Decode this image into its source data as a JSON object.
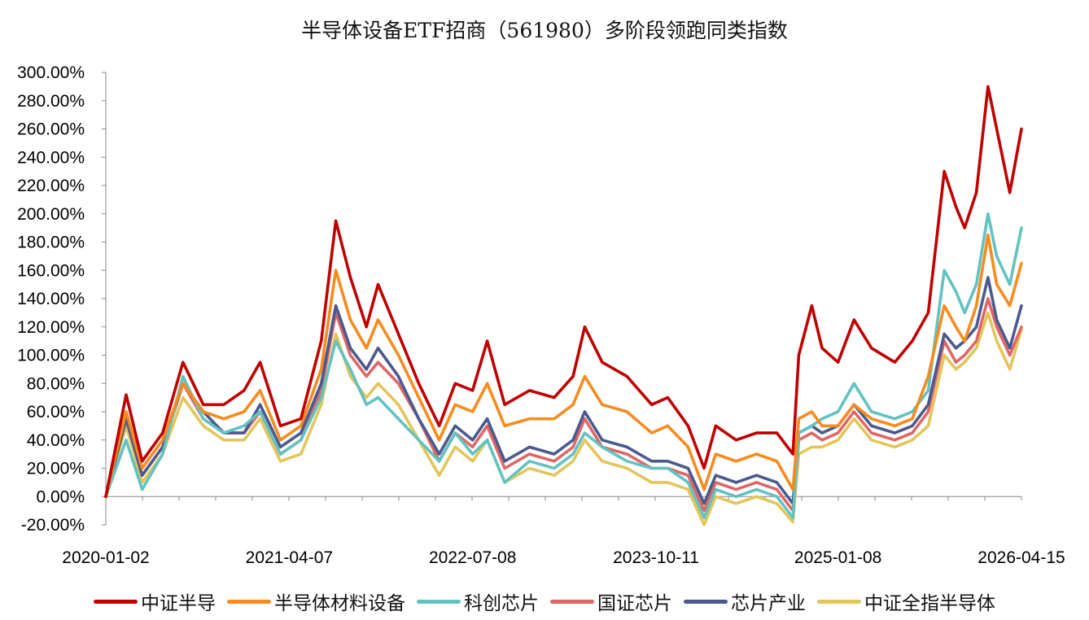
{
  "chart_data": {
    "type": "line",
    "title": "半导体设备ETF招商（561980）多阶段领跑同类指数",
    "xlabel": "",
    "ylabel": "",
    "ylim": [
      -20,
      300
    ],
    "xlim": [
      2020.0,
      2026.29
    ],
    "yticks": [
      -20,
      0,
      20,
      40,
      60,
      80,
      100,
      120,
      140,
      160,
      180,
      200,
      220,
      240,
      260,
      280,
      300
    ],
    "ytick_labels": [
      "-20.00%",
      "0.00%",
      "20.00%",
      "40.00%",
      "60.00%",
      "80.00%",
      "100.00%",
      "120.00%",
      "140.00%",
      "160.00%",
      "180.00%",
      "200.00%",
      "220.00%",
      "240.00%",
      "260.00%",
      "280.00%",
      "300.00%"
    ],
    "xticks": [
      2020.0,
      2021.26,
      2022.52,
      2023.78,
      2025.03,
      2026.29
    ],
    "xtick_labels": [
      "2020-01-02",
      "2021-04-07",
      "2022-07-08",
      "2023-10-11",
      "2025-01-08",
      "2026-04-15"
    ],
    "grid": false,
    "legend_position": "bottom",
    "x": [
      2020.0,
      2020.14,
      2020.25,
      2020.39,
      2020.53,
      2020.67,
      2020.81,
      2020.95,
      2021.06,
      2021.2,
      2021.34,
      2021.48,
      2021.58,
      2021.68,
      2021.79,
      2021.87,
      2022.01,
      2022.15,
      2022.29,
      2022.4,
      2022.52,
      2022.62,
      2022.74,
      2022.91,
      2023.08,
      2023.21,
      2023.29,
      2023.41,
      2023.58,
      2023.75,
      2023.86,
      2024.0,
      2024.11,
      2024.19,
      2024.33,
      2024.47,
      2024.61,
      2024.72,
      2024.76,
      2024.85,
      2024.92,
      2025.03,
      2025.14,
      2025.26,
      2025.42,
      2025.54,
      2025.65,
      2025.76,
      2025.84,
      2025.9,
      2025.98,
      2026.06,
      2026.12,
      2026.21,
      2026.29
    ],
    "series": [
      {
        "name": "中证全指半导体",
        "color": "#E3C55A",
        "values": [
          0,
          50,
          10,
          30,
          70,
          50,
          40,
          40,
          55,
          25,
          30,
          65,
          115,
          85,
          70,
          80,
          65,
          40,
          15,
          35,
          25,
          40,
          10,
          20,
          15,
          25,
          40,
          25,
          20,
          10,
          10,
          5,
          -20,
          0,
          -5,
          0,
          -5,
          -18,
          30,
          35,
          35,
          40,
          55,
          40,
          35,
          40,
          50,
          100,
          90,
          95,
          105,
          130,
          110,
          90,
          118
        ]
      },
      {
        "name": "国证芯片",
        "color": "#E06666",
        "values": [
          0,
          55,
          15,
          35,
          80,
          55,
          45,
          45,
          60,
          30,
          40,
          75,
          130,
          100,
          85,
          95,
          80,
          55,
          25,
          45,
          35,
          50,
          20,
          30,
          25,
          35,
          55,
          35,
          30,
          20,
          20,
          15,
          -10,
          10,
          5,
          10,
          5,
          -10,
          40,
          45,
          40,
          45,
          60,
          45,
          40,
          45,
          60,
          110,
          95,
          100,
          110,
          140,
          120,
          100,
          120
        ]
      },
      {
        "name": "芯片产业",
        "color": "#4A5A8E",
        "values": [
          0,
          55,
          15,
          35,
          80,
          60,
          45,
          45,
          65,
          35,
          45,
          80,
          135,
          105,
          90,
          105,
          85,
          55,
          30,
          50,
          40,
          55,
          25,
          35,
          30,
          40,
          60,
          40,
          35,
          25,
          25,
          20,
          -5,
          15,
          10,
          15,
          10,
          -5,
          45,
          50,
          45,
          50,
          65,
          50,
          45,
          50,
          65,
          115,
          105,
          110,
          120,
          155,
          125,
          105,
          135
        ]
      },
      {
        "name": "科创芯片",
        "color": "#62C2C2",
        "values": [
          0,
          40,
          5,
          30,
          85,
          55,
          45,
          50,
          60,
          30,
          40,
          70,
          110,
          90,
          65,
          70,
          55,
          40,
          25,
          45,
          30,
          40,
          10,
          25,
          20,
          30,
          45,
          35,
          25,
          20,
          20,
          10,
          -15,
          5,
          0,
          5,
          0,
          -15,
          45,
          50,
          55,
          60,
          80,
          60,
          55,
          60,
          75,
          160,
          145,
          130,
          150,
          200,
          170,
          150,
          190
        ]
      },
      {
        "name": "半导体材料设备",
        "color": "#F78B1E",
        "values": [
          0,
          60,
          20,
          40,
          80,
          60,
          55,
          60,
          75,
          40,
          50,
          90,
          160,
          125,
          105,
          125,
          100,
          70,
          40,
          65,
          60,
          80,
          50,
          55,
          55,
          65,
          85,
          65,
          60,
          45,
          50,
          35,
          5,
          30,
          25,
          30,
          25,
          5,
          55,
          60,
          50,
          50,
          65,
          55,
          50,
          55,
          85,
          135,
          120,
          110,
          135,
          185,
          150,
          135,
          165
        ]
      },
      {
        "name": "中证半导",
        "color": "#C00000",
        "values": [
          0,
          72,
          25,
          45,
          95,
          65,
          65,
          75,
          95,
          50,
          55,
          110,
          195,
          155,
          120,
          150,
          115,
          80,
          50,
          80,
          75,
          110,
          65,
          75,
          70,
          85,
          120,
          95,
          85,
          65,
          70,
          50,
          20,
          50,
          40,
          45,
          45,
          30,
          100,
          135,
          105,
          95,
          125,
          105,
          95,
          110,
          130,
          230,
          205,
          190,
          215,
          290,
          260,
          215,
          260
        ]
      }
    ]
  },
  "legend": [
    {
      "name": "中证半导",
      "color": "#C00000"
    },
    {
      "name": "半导体材料设备",
      "color": "#F78B1E"
    },
    {
      "name": "科创芯片",
      "color": "#62C2C2"
    },
    {
      "name": "国证芯片",
      "color": "#E06666"
    },
    {
      "name": "芯片产业",
      "color": "#4A5A8E"
    },
    {
      "name": "中证全指半导体",
      "color": "#E3C55A"
    }
  ]
}
